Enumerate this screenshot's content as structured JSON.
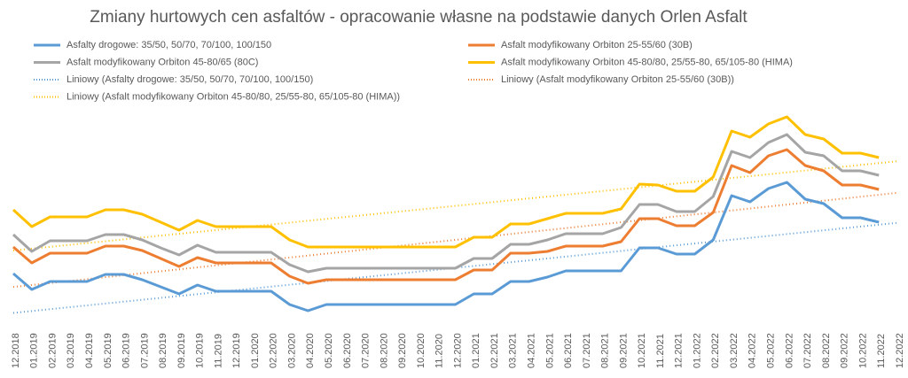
{
  "chart_data": {
    "type": "line",
    "title": "Zmiany hurtowych cen asfaltów - opracowanie własne na podstawie danych Orlen Asfalt",
    "categories": [
      "12.2018",
      "01.2019",
      "02.2019",
      "03.2019",
      "04.2019",
      "05.2019",
      "06.2019",
      "07.2019",
      "08.2019",
      "09.2019",
      "10.2019",
      "11.2019",
      "12.2019",
      "01.2020",
      "02.2020",
      "03.2020",
      "04.2020",
      "05.2020",
      "06.2020",
      "07.2020",
      "08.2020",
      "09.2020",
      "10.2020",
      "11.2020",
      "12.2020",
      "01.2021",
      "02.2021",
      "03.2021",
      "04.2021",
      "05.2021",
      "06.2021",
      "07.2021",
      "08.2021",
      "09.2021",
      "10.2021",
      "11.2021",
      "12.2021",
      "01.2022",
      "02.2022",
      "03.2022",
      "04.2022",
      "05.2022",
      "06.2022",
      "07.2022",
      "08.2022",
      "09.2022",
      "10.2022",
      "11.2022",
      "12.2022"
    ],
    "ylim": [
      0,
      250
    ],
    "series": [
      {
        "name": "Asfalty drogowe: 35/50, 50/70, 70/100, 100/150",
        "color": "#5b9bd5",
        "values": [
          51,
          33,
          42,
          42,
          42,
          50,
          50,
          44,
          36,
          28,
          38,
          31,
          31,
          31,
          31,
          16,
          9,
          16,
          16,
          16,
          16,
          16,
          16,
          16,
          16,
          28,
          28,
          42,
          42,
          47,
          54,
          54,
          54,
          54,
          80,
          80,
          73,
          73,
          89,
          139,
          132,
          147,
          154,
          135,
          130,
          114,
          114,
          109,
          null
        ]
      },
      {
        "name": "Asfalt modyfikowany Orbiton 25-55/60 (30B)",
        "color": "#ed7d31",
        "values": [
          81,
          63,
          74,
          74,
          74,
          82,
          82,
          77,
          68,
          59,
          69,
          63,
          63,
          63,
          63,
          48,
          40,
          44,
          44,
          44,
          44,
          44,
          44,
          44,
          44,
          55,
          55,
          74,
          74,
          76,
          82,
          82,
          82,
          87,
          113,
          113,
          105,
          105,
          120,
          173,
          165,
          184,
          191,
          173,
          167,
          151,
          151,
          146,
          null
        ]
      },
      {
        "name": "Asfalt modyfikowany Orbiton 45-80/65 (80C)",
        "color": "#a5a5a5",
        "values": [
          95,
          76,
          88,
          88,
          88,
          95,
          95,
          89,
          80,
          72,
          83,
          75,
          75,
          75,
          75,
          61,
          53,
          57,
          57,
          57,
          57,
          57,
          57,
          57,
          57,
          68,
          68,
          84,
          84,
          89,
          96,
          96,
          96,
          103,
          129,
          129,
          121,
          121,
          138,
          189,
          182,
          199,
          208,
          188,
          184,
          167,
          167,
          162,
          null
        ]
      },
      {
        "name": "Asfalt modyfikowany Orbiton 45-80/80, 25/55-80, 65/105-80 (HIMA)",
        "color": "#ffc000",
        "values": [
          123,
          104,
          115,
          115,
          115,
          123,
          123,
          118,
          109,
          100,
          111,
          104,
          104,
          104,
          104,
          89,
          81,
          81,
          81,
          81,
          81,
          81,
          81,
          81,
          81,
          92,
          92,
          107,
          107,
          113,
          119,
          119,
          119,
          124,
          152,
          151,
          144,
          144,
          160,
          212,
          205,
          220,
          228,
          208,
          203,
          187,
          187,
          182,
          null
        ]
      }
    ],
    "trendlines": [
      {
        "name": "Liniowy (Asfalty drogowe: 35/50, 50/70, 70/100, 100/150)",
        "series": 0
      },
      {
        "name": "Liniowy (Asfalt modyfikowany Orbiton 25-55/60 (30B))",
        "series": 1
      },
      {
        "name": "Liniowy (Asfalt modyfikowany Orbiton 45-80/80, 25/55-80, 65/105-80 (HIMA))",
        "series": 3
      }
    ]
  }
}
